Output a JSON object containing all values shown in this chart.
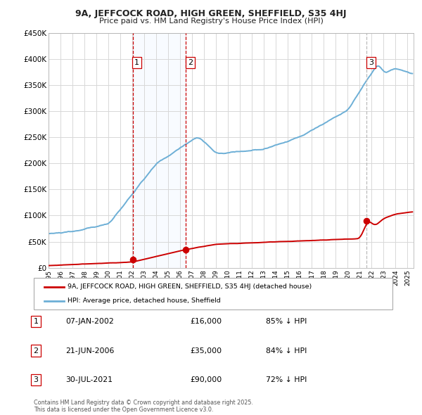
{
  "title_line1": "9A, JEFFCOCK ROAD, HIGH GREEN, SHEFFIELD, S35 4HJ",
  "title_line2": "Price paid vs. HM Land Registry's House Price Index (HPI)",
  "legend_label_red": "9A, JEFFCOCK ROAD, HIGH GREEN, SHEFFIELD, S35 4HJ (detached house)",
  "legend_label_blue": "HPI: Average price, detached house, Sheffield",
  "footer": "Contains HM Land Registry data © Crown copyright and database right 2025.\nThis data is licensed under the Open Government Licence v3.0.",
  "transactions": [
    {
      "label": "1",
      "date_x": 2002.03,
      "price": 16000,
      "date_str": "07-JAN-2002",
      "price_str": "£16,000",
      "pct_str": "85% ↓ HPI"
    },
    {
      "label": "2",
      "date_x": 2006.47,
      "price": 35000,
      "date_str": "21-JUN-2006",
      "price_str": "£35,000",
      "pct_str": "84% ↓ HPI"
    },
    {
      "label": "3",
      "date_x": 2021.58,
      "price": 90000,
      "date_str": "30-JUL-2021",
      "price_str": "£90,000",
      "pct_str": "72% ↓ HPI"
    }
  ],
  "hpi_color": "#6dafd6",
  "price_color": "#cc0000",
  "shade_color": "#ddeeff",
  "ylim": [
    0,
    450000
  ],
  "xlim_start": 1995.0,
  "xlim_end": 2025.5,
  "yticks": [
    0,
    50000,
    100000,
    150000,
    200000,
    250000,
    300000,
    350000,
    400000,
    450000
  ],
  "ytick_labels": [
    "£0",
    "£50K",
    "£100K",
    "£150K",
    "£200K",
    "£250K",
    "£300K",
    "£350K",
    "£400K",
    "£450K"
  ],
  "xticks": [
    1995,
    1996,
    1997,
    1998,
    1999,
    2000,
    2001,
    2002,
    2003,
    2004,
    2005,
    2006,
    2007,
    2008,
    2009,
    2010,
    2011,
    2012,
    2013,
    2014,
    2015,
    2016,
    2017,
    2018,
    2019,
    2020,
    2021,
    2022,
    2023,
    2024,
    2025
  ]
}
